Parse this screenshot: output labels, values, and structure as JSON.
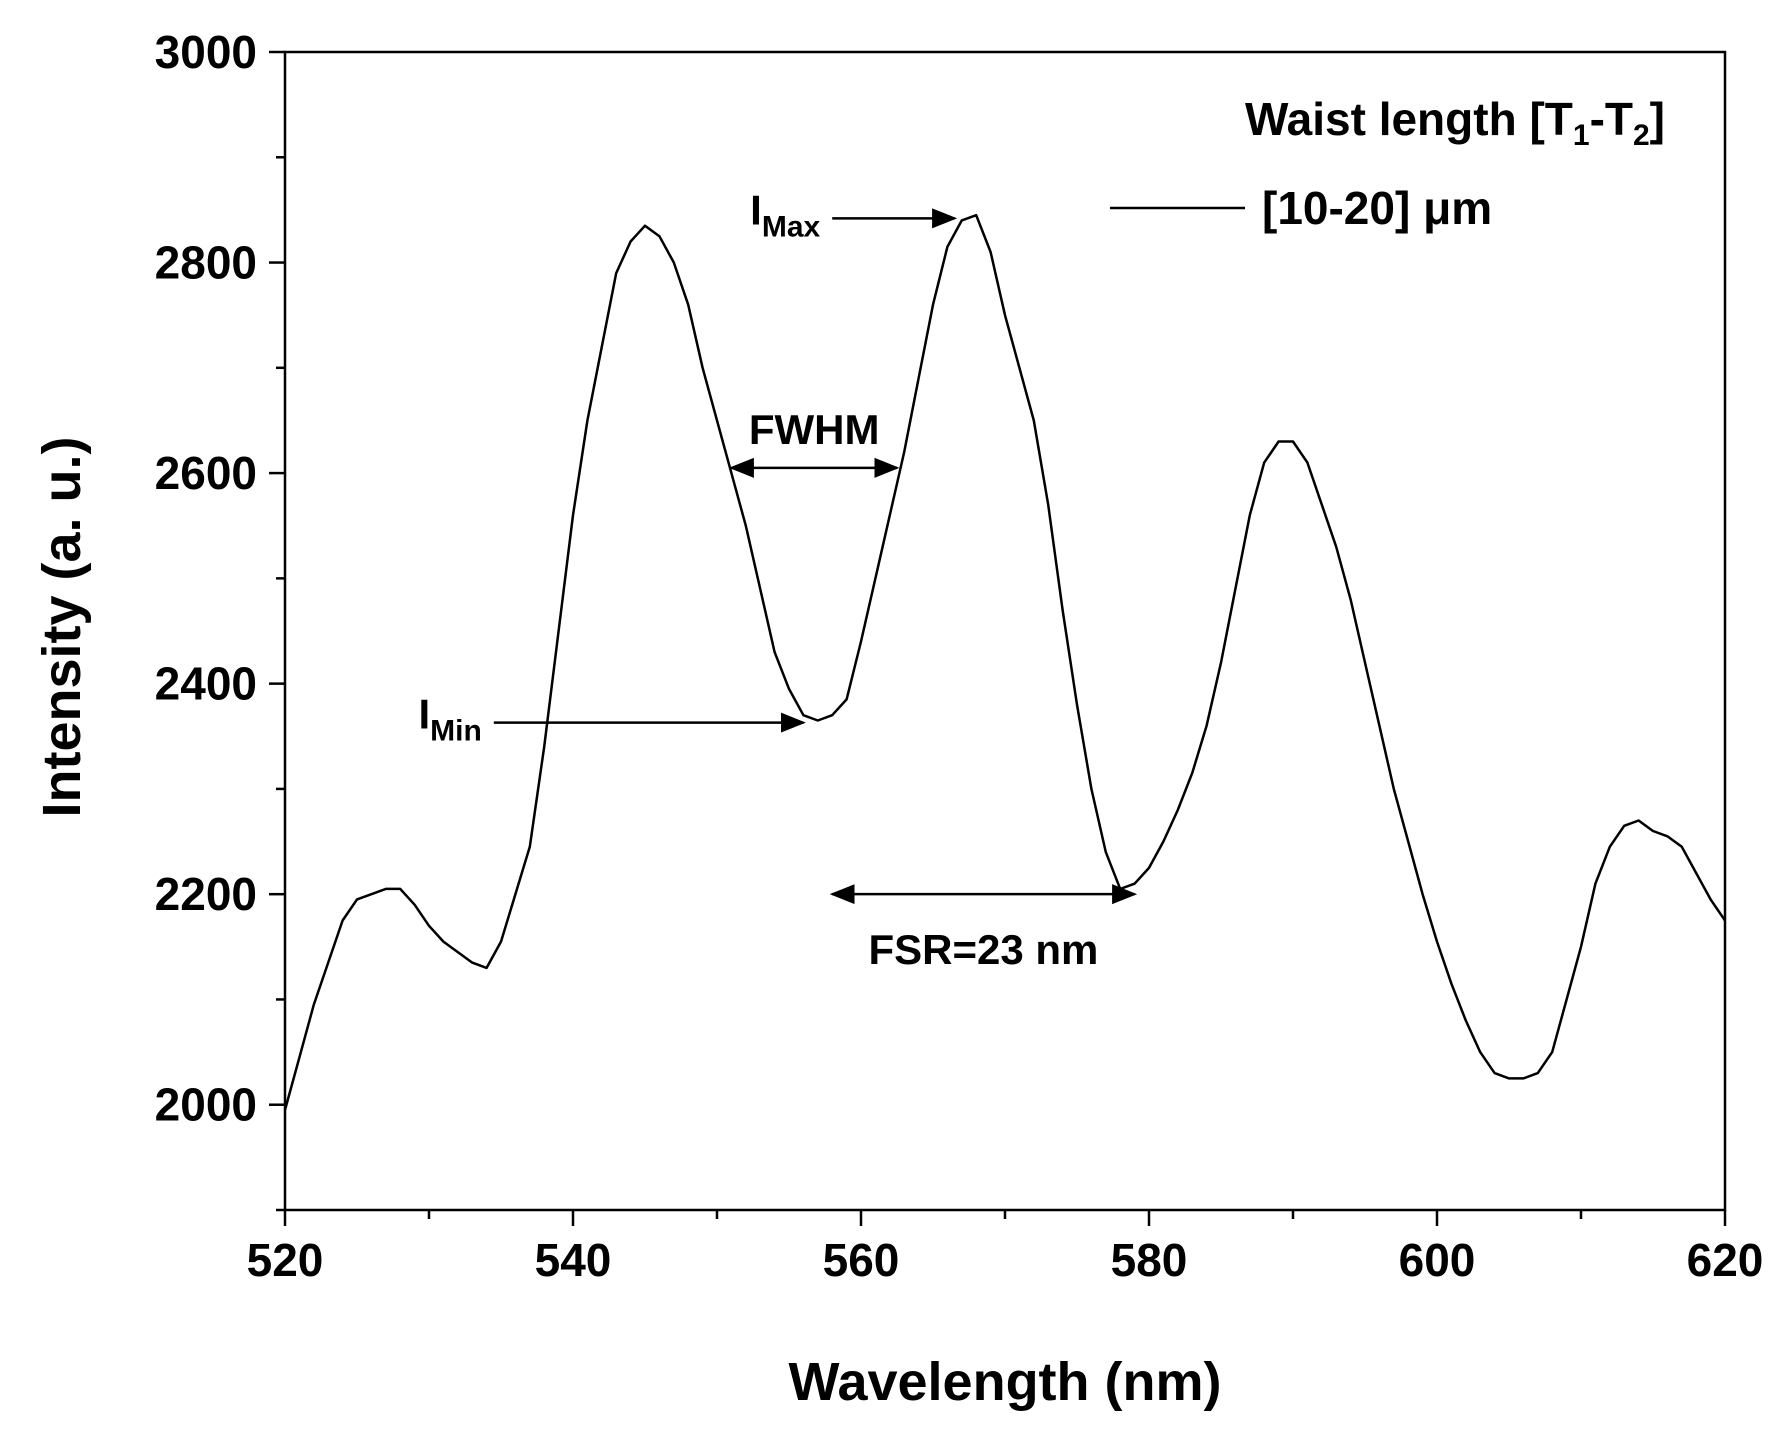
{
  "chart_data": {
    "type": "line",
    "xlabel": "Wavelength (nm)",
    "ylabel": "Intensity (a. u.)",
    "xlim": [
      520,
      620
    ],
    "ylim": [
      1900,
      3000
    ],
    "x_ticks": [
      520,
      540,
      560,
      580,
      600,
      620
    ],
    "y_ticks": [
      2000,
      2200,
      2400,
      2600,
      2800,
      3000
    ],
    "x_minor_step": 10,
    "y_minor_step": 100,
    "grid": false,
    "legend": {
      "title_main": "Waist length [T",
      "title_sub1": "1",
      "title_mid": "-T",
      "title_sub2": "2",
      "title_end": "]",
      "placement": "top-right"
    },
    "series": [
      {
        "name": "[10-20] μm",
        "color": "#000000",
        "x": [
          520,
          521,
          522,
          523,
          524,
          525,
          526,
          527,
          528,
          529,
          530,
          531,
          532,
          533,
          534,
          535,
          536,
          537,
          538,
          539,
          540,
          541,
          542,
          543,
          544,
          545,
          546,
          547,
          548,
          549,
          550,
          551,
          552,
          553,
          554,
          555,
          556,
          557,
          558,
          559,
          560,
          561,
          562,
          563,
          564,
          565,
          566,
          567,
          568,
          569,
          570,
          571,
          572,
          573,
          574,
          575,
          576,
          577,
          578,
          579,
          580,
          581,
          582,
          583,
          584,
          585,
          586,
          587,
          588,
          589,
          590,
          591,
          592,
          593,
          594,
          595,
          596,
          597,
          598,
          599,
          600,
          601,
          602,
          603,
          604,
          605,
          606,
          607,
          608,
          609,
          610,
          611,
          612,
          613,
          614,
          615,
          616,
          617,
          618,
          619,
          620
        ],
        "y": [
          1995,
          2045,
          2095,
          2135,
          2175,
          2195,
          2200,
          2205,
          2205,
          2190,
          2170,
          2155,
          2145,
          2135,
          2130,
          2155,
          2200,
          2245,
          2340,
          2450,
          2560,
          2650,
          2720,
          2790,
          2820,
          2835,
          2825,
          2800,
          2760,
          2700,
          2650,
          2600,
          2550,
          2490,
          2430,
          2395,
          2370,
          2365,
          2370,
          2385,
          2440,
          2500,
          2560,
          2620,
          2690,
          2760,
          2815,
          2840,
          2845,
          2810,
          2750,
          2700,
          2650,
          2570,
          2470,
          2380,
          2300,
          2240,
          2205,
          2210,
          2225,
          2250,
          2280,
          2315,
          2360,
          2420,
          2490,
          2560,
          2610,
          2630,
          2630,
          2610,
          2570,
          2530,
          2480,
          2420,
          2360,
          2300,
          2250,
          2200,
          2155,
          2115,
          2080,
          2050,
          2030,
          2025,
          2025,
          2030,
          2050,
          2100,
          2150,
          2210,
          2245,
          2265,
          2270,
          2260,
          2255,
          2245,
          2220,
          2195,
          2175
        ]
      }
    ],
    "annotations": [
      {
        "label": "I",
        "sub": "Max",
        "kind": "arrow",
        "from": [
          558,
          2842
        ],
        "to": [
          566.5,
          2842
        ]
      },
      {
        "label": "I",
        "sub": "Min",
        "kind": "arrow",
        "from": [
          534.5,
          2363
        ],
        "to": [
          556,
          2363
        ]
      },
      {
        "label": "FWHM",
        "kind": "double-arrow",
        "from": [
          551,
          2605
        ],
        "to": [
          562.5,
          2605
        ]
      },
      {
        "label": "FSR=23 nm",
        "kind": "double-arrow",
        "from": [
          558,
          2200
        ],
        "to": [
          579,
          2200
        ]
      }
    ]
  }
}
